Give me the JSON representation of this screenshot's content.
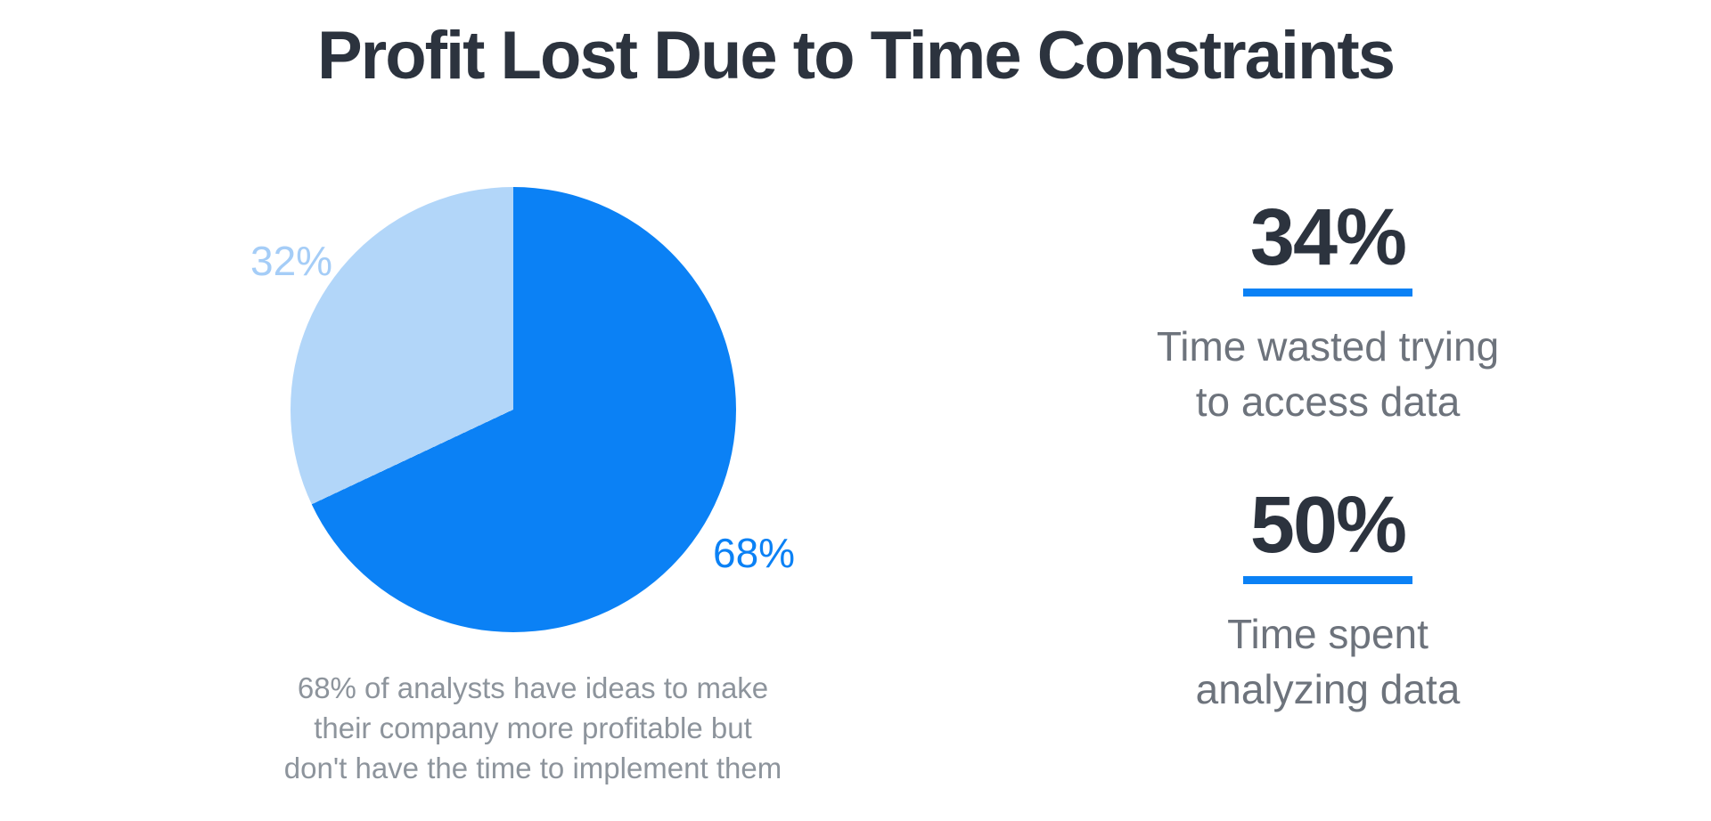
{
  "title": "Profit Lost Due to Time Constraints",
  "colors": {
    "accent": "#0b81f5",
    "dark_text": "#2c333e",
    "muted_text": "#6d737c",
    "caption_text": "#8d949c",
    "pie_dark": "#0b81f5",
    "pie_light": "#b2d6f9",
    "pie_light_label": "#a5cdf7",
    "background": "#ffffff"
  },
  "chart_data": {
    "type": "pie",
    "title": "Profit Lost Due to Time Constraints",
    "segments": [
      {
        "label": "68%",
        "value": 68,
        "color": "#0b81f5"
      },
      {
        "label": "32%",
        "value": 32,
        "color": "#b2d6f9",
        "label_color": "#a5cdf7"
      }
    ],
    "start_angle_deg": 0,
    "direction": "clockwise",
    "legend": "none",
    "caption": "68% of analysts have ideas to make\ntheir company more profitable but\ndon't have the time to implement them"
  },
  "stats": [
    {
      "value": "34%",
      "label": "Time wasted trying\nto access data"
    },
    {
      "value": "50%",
      "label": "Time spent\nanalyzing data"
    }
  ]
}
